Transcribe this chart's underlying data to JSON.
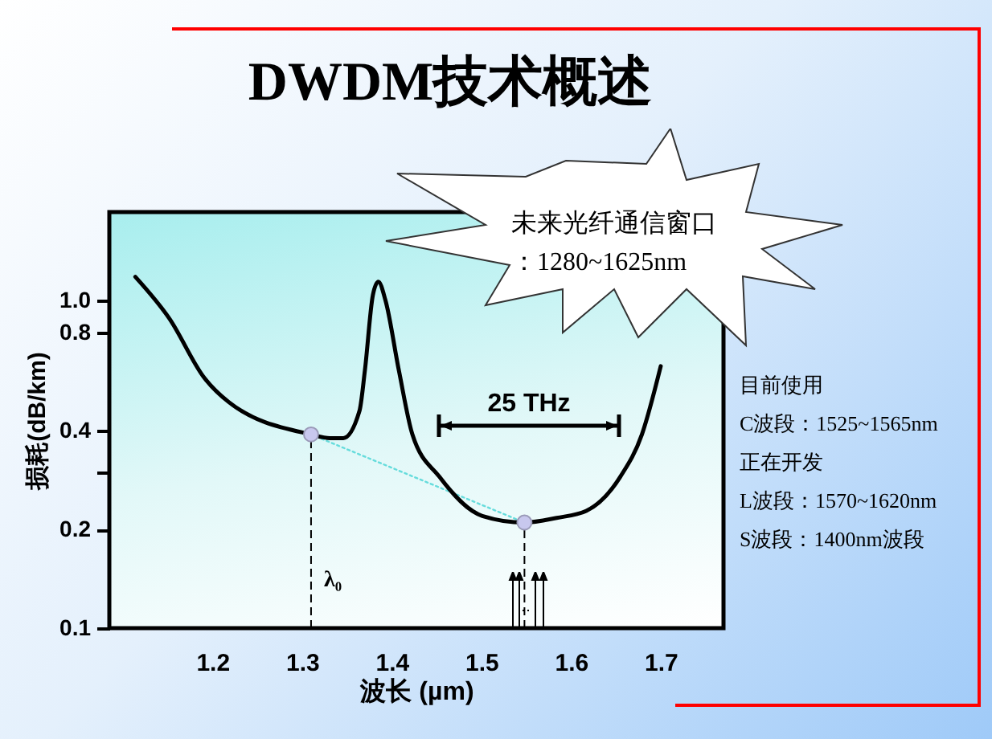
{
  "chart_data": {
    "type": "line",
    "title": "DWDM技术概述",
    "xlabel": "波长 (µm)",
    "ylabel": "损耗(dB/km)",
    "log": "y",
    "xlim": [
      1.085,
      1.77
    ],
    "xticks": [
      1.2,
      1.3,
      1.4,
      1.5,
      1.6,
      1.7
    ],
    "ylim": [
      0.1,
      1.86
    ],
    "yticks": [
      0.1,
      0.2,
      {
        "value": 0.3,
        "label": null
      },
      0.4,
      0.8,
      {
        "value": 1,
        "label": "1.0"
      }
    ],
    "grid": false,
    "series": [
      {
        "color": "#66dcdc",
        "line_style": "dotted",
        "x": [
          1.31,
          1.548
        ],
        "values": [
          0.39,
          0.21
        ]
      },
      {
        "color": "#000000",
        "line_style": "solid",
        "x": [
          1.114,
          1.152,
          1.191,
          1.218,
          1.31,
          1.331,
          1.346,
          1.364,
          1.37,
          1.379,
          1.385,
          1.393,
          1.408,
          1.423,
          1.453,
          1.501,
          1.548,
          1.584,
          1.617,
          1.655,
          1.679,
          1.7
        ],
        "values": [
          1.18,
          0.88,
          0.58,
          0.49,
          0.39,
          0.38,
          0.38,
          0.46,
          0.61,
          1.04,
          1.14,
          1.0,
          0.61,
          0.39,
          0.29,
          0.22,
          0.21,
          0.217,
          0.228,
          0.29,
          0.39,
          0.63
        ]
      },
      {
        "type": "scatter",
        "color": "#c8c8ee",
        "marker": "circle",
        "x": [
          1.31,
          1.548
        ],
        "values": [
          0.39,
          0.21
        ],
        "errors": [
          [
            0.1,
            0.39
          ],
          [
            0.1,
            0.21
          ]
        ]
      }
    ],
    "annotations": [
      "未来光纤通信窗口：1280~1625nm",
      "目前使用",
      "C波段：1525~1565nm",
      "正在开发",
      "L波段：1570~1620nm",
      "S波段：1400nm波段",
      "25 THz",
      {
        "text": "λ₀",
        "x": 1.31,
        "y": 0.14
      }
    ]
  }
}
